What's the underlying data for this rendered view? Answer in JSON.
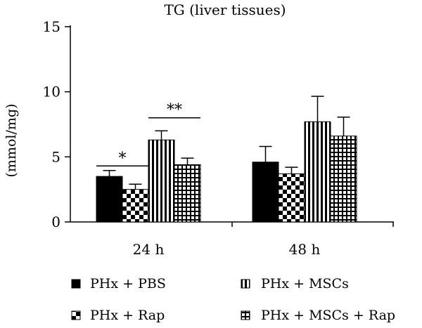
{
  "chart_data": {
    "type": "bar",
    "title": "TG (liver tissues)",
    "ylabel": "(mmol/mg)",
    "xlabel": "",
    "ylim": [
      0,
      15
    ],
    "yticks": [
      0,
      5,
      10,
      15
    ],
    "categories": [
      "24 h",
      "48 h"
    ],
    "series": [
      {
        "name": "PHx + PBS",
        "pattern": "solid",
        "values": [
          3.5,
          4.6
        ],
        "errors": [
          0.45,
          1.2
        ]
      },
      {
        "name": "PHx + Rap",
        "pattern": "checker",
        "values": [
          2.5,
          3.7
        ],
        "errors": [
          0.4,
          0.5
        ]
      },
      {
        "name": "PHx + MSCs",
        "pattern": "vertical",
        "values": [
          6.3,
          7.7
        ],
        "errors": [
          0.7,
          1.95
        ]
      },
      {
        "name": "PHx + MSCs + Rap",
        "pattern": "grid",
        "values": [
          4.4,
          6.6
        ],
        "errors": [
          0.5,
          1.45
        ]
      }
    ],
    "significance": [
      {
        "label": "*",
        "category": "24 h",
        "from_series": 0,
        "to_series": 1,
        "level": 4.3
      },
      {
        "label": "**",
        "category": "24 h",
        "from_series": 2,
        "to_series": 3,
        "level": 8.0
      }
    ],
    "grid": false,
    "legend_position": "bottom",
    "colors": {
      "ink": "#000000",
      "background": "#ffffff"
    }
  }
}
